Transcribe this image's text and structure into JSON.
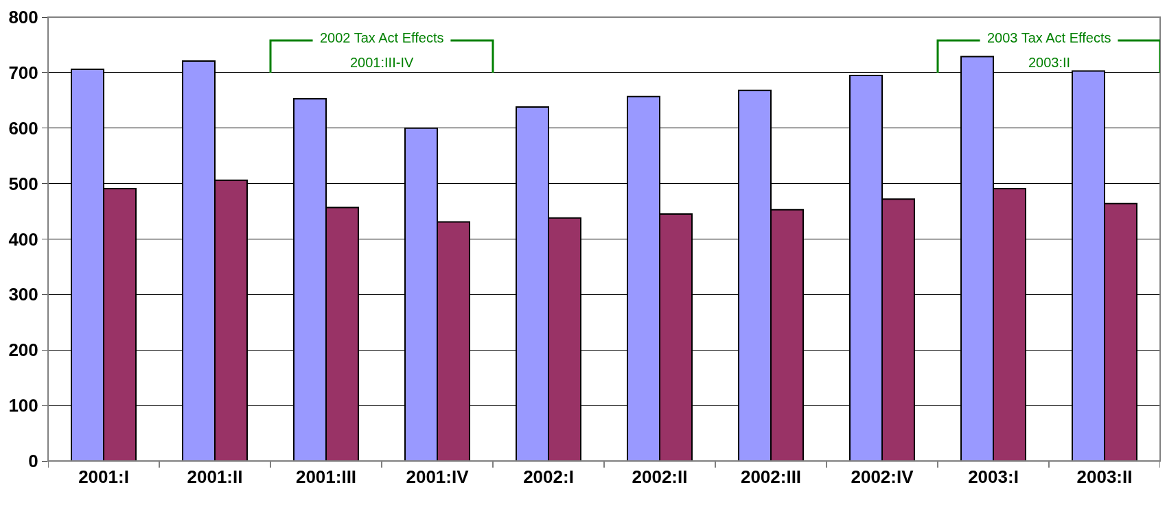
{
  "chart_data": {
    "type": "bar",
    "categories": [
      "2001:I",
      "2001:II",
      "2001:III",
      "2001:IV",
      "2002:I",
      "2002:II",
      "2002:III",
      "2002:IV",
      "2003:I",
      "2003:II"
    ],
    "series": [
      {
        "color": "#9999ff",
        "values": [
          706,
          721,
          653,
          600,
          638,
          657,
          668,
          695,
          729,
          703
        ]
      },
      {
        "color": "#993366",
        "values": [
          491,
          506,
          457,
          431,
          438,
          445,
          453,
          472,
          491,
          464
        ]
      }
    ],
    "ylim": [
      0,
      800
    ],
    "yticks": [
      0,
      100,
      200,
      300,
      400,
      500,
      600,
      700,
      800
    ],
    "grid": "y",
    "legend": false,
    "annotations": [
      "2002 Tax Act Effects",
      "2001:III-IV",
      "2003 Tax Act Effects",
      "2003:II"
    ]
  }
}
